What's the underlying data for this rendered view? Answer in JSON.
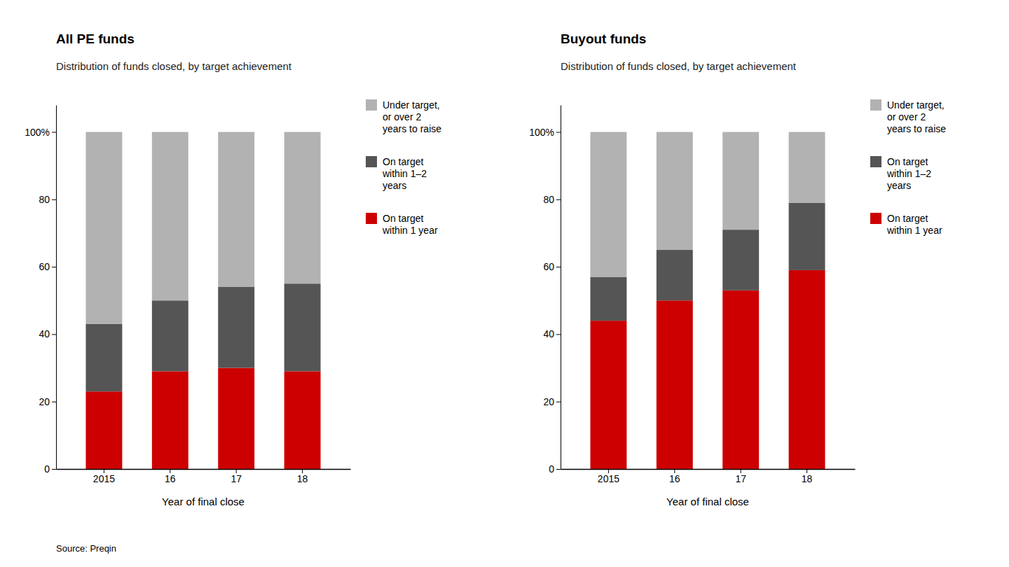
{
  "chart_data": [
    {
      "type": "bar",
      "title": "All PE funds",
      "subtitle": "Distribution of funds closed, by target achievement",
      "x_label": "Year of final close",
      "categories": [
        "2015",
        "16",
        "17",
        "18"
      ],
      "series": [
        {
          "name": "On target\nwithin 1 year",
          "color": "#cc0000",
          "values": [
            23,
            29,
            30,
            29
          ]
        },
        {
          "name": "On target\nwithin 1–2\nyears",
          "color": "#555555",
          "values": [
            20,
            21,
            24,
            26
          ]
        },
        {
          "name": "Under target,\nor over 2\nyears to raise",
          "color": "#b2b2b2",
          "values": [
            57,
            50,
            46,
            45
          ]
        }
      ],
      "ylim": [
        0,
        108
      ],
      "yticks": [
        0,
        20,
        40,
        60,
        80,
        {
          "value": 100,
          "label": "100%"
        }
      ],
      "stacked": true,
      "grid": false,
      "legend": "right",
      "annotations": [
        "Source: Preqin"
      ]
    },
    {
      "type": "bar",
      "title": "Buyout funds",
      "subtitle": "Distribution of funds closed, by target achievement",
      "x_label": "Year of final close",
      "categories": [
        "2015",
        "16",
        "17",
        "18"
      ],
      "series": [
        {
          "name": "On target\nwithin 1 year",
          "color": "#cc0000",
          "values": [
            44,
            50,
            53,
            59
          ]
        },
        {
          "name": "On target\nwithin 1–2\nyears",
          "color": "#555555",
          "values": [
            13,
            15,
            18,
            20
          ]
        },
        {
          "name": "Under target,\nor over 2\nyears to raise",
          "color": "#b2b2b2",
          "values": [
            43,
            35,
            29,
            21
          ]
        }
      ],
      "ylim": [
        0,
        108
      ],
      "yticks": [
        0,
        20,
        40,
        60,
        80,
        {
          "value": 100,
          "label": "100%"
        }
      ],
      "stacked": true,
      "grid": false,
      "legend": "right"
    }
  ]
}
